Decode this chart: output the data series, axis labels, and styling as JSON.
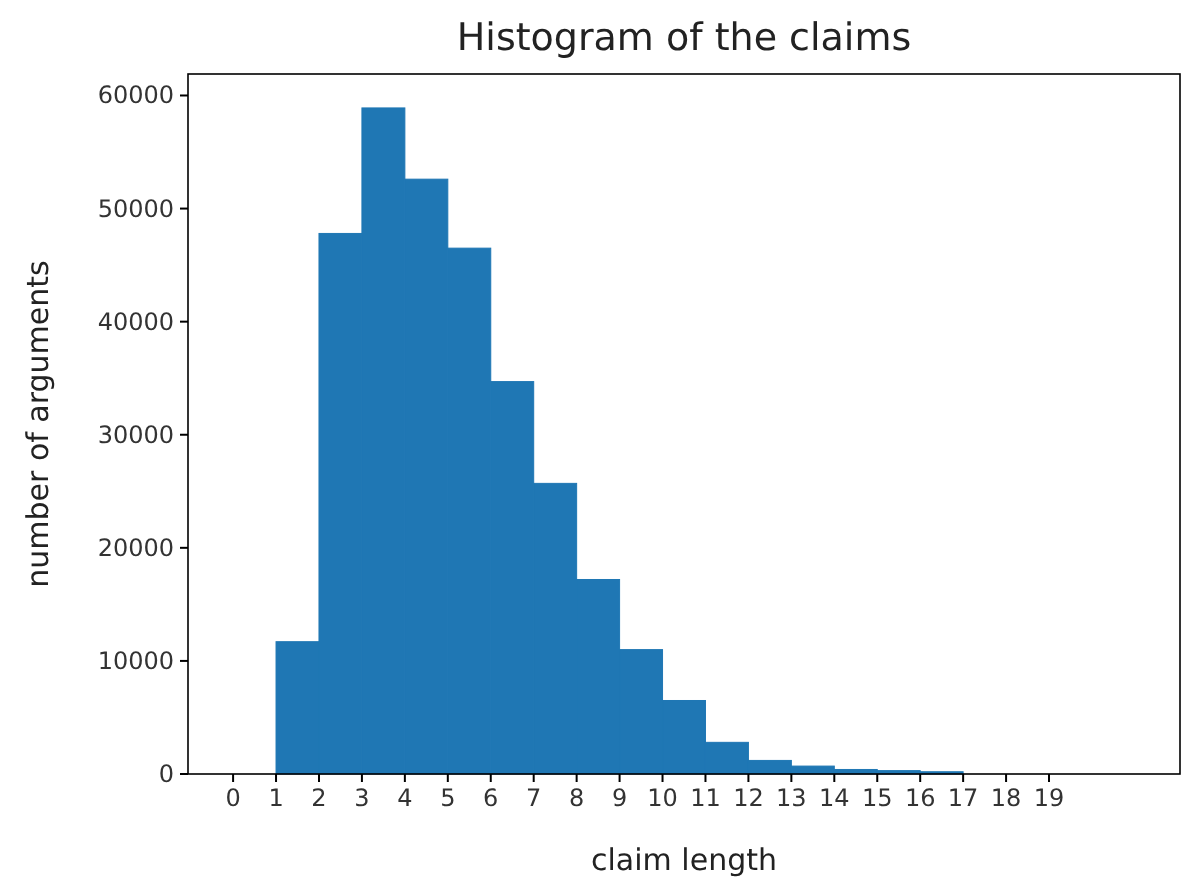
{
  "chart_data": {
    "type": "histogram",
    "title": "Histogram of the claims",
    "xlabel": "claim length",
    "ylabel": "number of arguments",
    "bins": [
      1,
      2,
      3,
      4,
      5,
      6,
      7,
      8,
      9,
      10,
      11,
      12,
      13,
      14,
      15,
      16,
      17
    ],
    "values": [
      11700,
      47800,
      58900,
      52600,
      46500,
      34700,
      25700,
      17200,
      11000,
      6500,
      2800,
      1200,
      700,
      400,
      300,
      200
    ],
    "color": "#1f77b4",
    "xlim": [
      -1.05,
      22.05
    ],
    "xticks": [
      0,
      1,
      2,
      3,
      4,
      5,
      6,
      7,
      8,
      9,
      10,
      11,
      12,
      13,
      14,
      15,
      16,
      17,
      18,
      19
    ],
    "ylim": [
      0,
      61900
    ],
    "yticks": [
      0,
      10000,
      20000,
      30000,
      40000,
      50000,
      60000
    ],
    "grid": false
  }
}
